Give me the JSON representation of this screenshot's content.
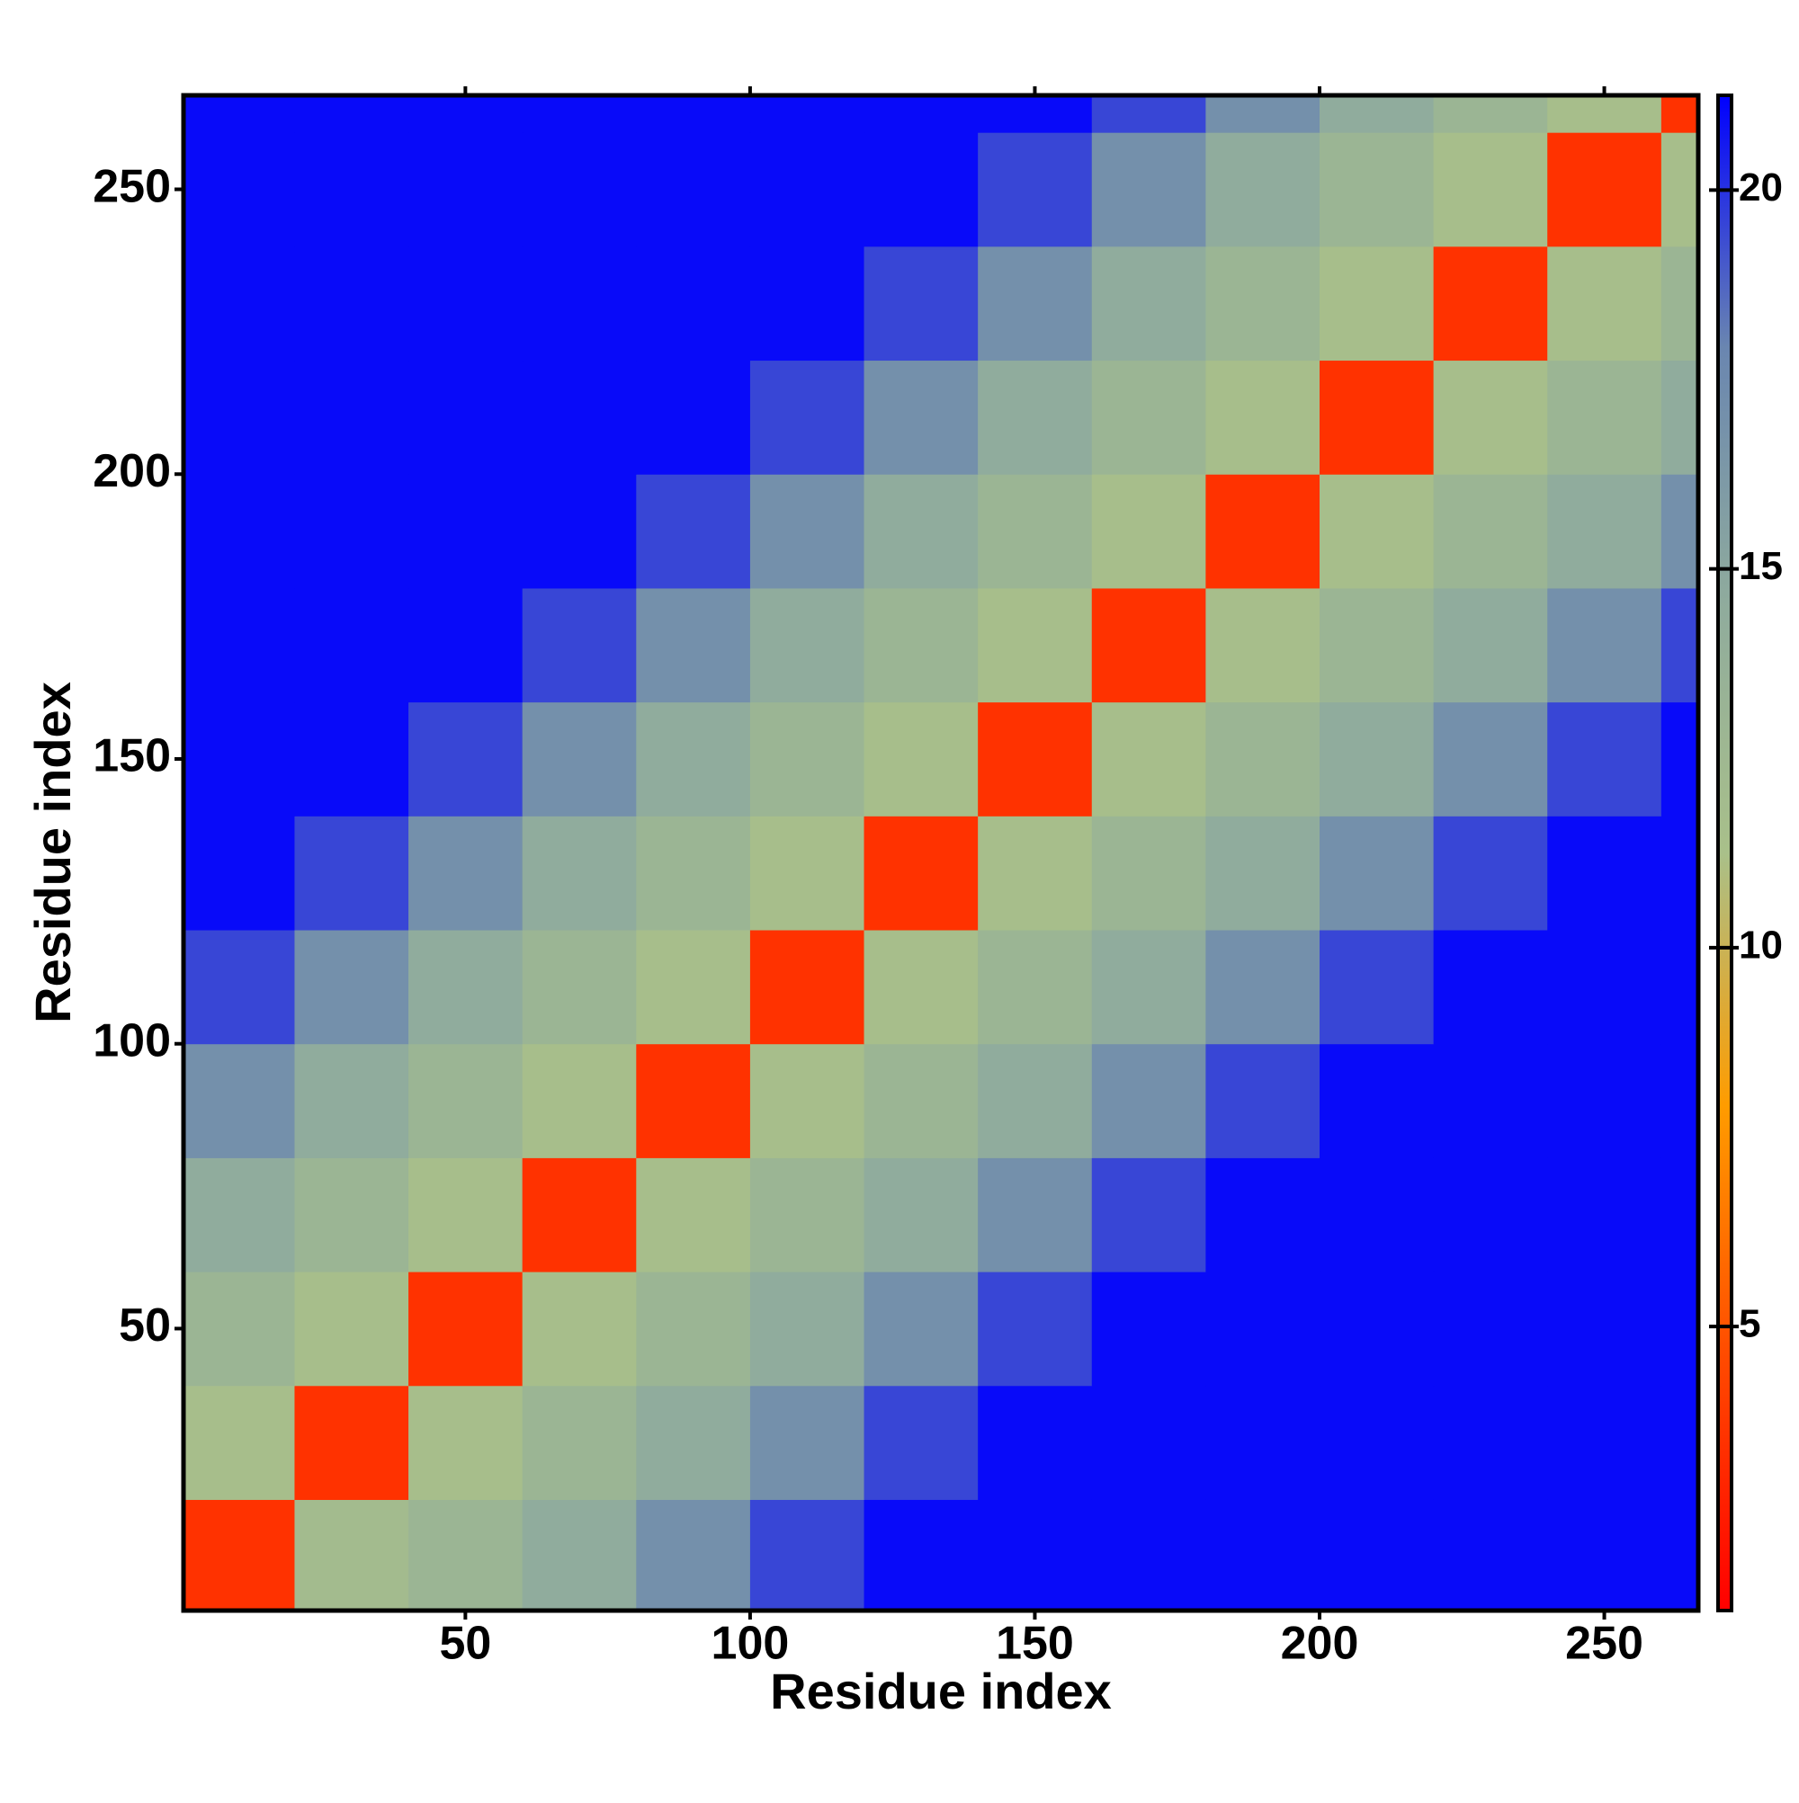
{
  "chart_data": {
    "type": "heatmap",
    "xlabel": "Residue index",
    "ylabel": "Residue index",
    "xbins": [
      0.5,
      20,
      40,
      60,
      80,
      100,
      120,
      140,
      160,
      180,
      200,
      220,
      240,
      260,
      266.5
    ],
    "ybins": [
      0.5,
      20,
      40,
      60,
      80,
      100,
      120,
      140,
      160,
      180,
      200,
      220,
      240,
      260,
      266.5
    ],
    "values": [
      [
        3.5,
        12,
        13,
        14.5,
        17,
        19.5,
        21,
        21,
        21,
        21,
        21,
        21,
        21,
        21
      ],
      [
        11.5,
        3.5,
        11.5,
        13,
        14.5,
        17,
        19.5,
        21,
        21,
        21,
        21,
        21,
        21,
        21
      ],
      [
        13,
        11.5,
        3.5,
        11.5,
        13,
        14.5,
        17,
        19.5,
        21,
        21,
        21,
        21,
        21,
        21
      ],
      [
        14.5,
        13,
        11.5,
        3.5,
        11.5,
        13,
        14.5,
        17,
        19.5,
        21,
        21,
        21,
        21,
        21
      ],
      [
        17,
        14.5,
        13,
        11.5,
        3.5,
        11.5,
        13,
        14.5,
        17,
        19.5,
        21,
        21,
        21,
        21
      ],
      [
        19.5,
        17,
        14.5,
        13,
        11.5,
        3.5,
        11.5,
        13,
        14.5,
        17,
        19.5,
        21,
        21,
        21
      ],
      [
        21,
        19.5,
        17,
        14.5,
        13,
        11.5,
        3.5,
        11.5,
        13,
        14.5,
        17,
        19.5,
        21,
        21
      ],
      [
        21,
        21,
        19.5,
        17,
        14.5,
        13,
        11.5,
        3.5,
        11.5,
        13,
        14.5,
        17,
        19.5,
        21
      ],
      [
        21,
        21,
        21,
        19.5,
        17,
        14.5,
        13,
        11.5,
        3.5,
        11.5,
        13,
        14.5,
        17,
        19.5
      ],
      [
        21,
        21,
        21,
        21,
        19.5,
        17,
        14.5,
        13,
        11.5,
        3.5,
        11.5,
        13,
        14.5,
        17
      ],
      [
        21,
        21,
        21,
        21,
        21,
        19.5,
        17,
        14.5,
        13,
        11.5,
        3.5,
        11.5,
        13,
        14.5
      ],
      [
        21,
        21,
        21,
        21,
        21,
        21,
        19.5,
        17,
        14.5,
        13,
        11.5,
        3.5,
        11.5,
        13
      ],
      [
        21,
        21,
        21,
        21,
        21,
        21,
        21,
        19.5,
        17,
        14.5,
        13,
        11.5,
        3.5,
        11.5
      ],
      [
        21,
        21,
        21,
        21,
        21,
        21,
        21,
        21,
        19.5,
        17,
        14.5,
        13,
        11.5,
        3.5
      ]
    ],
    "xlim": [
      0.5,
      266.5
    ],
    "ylim": [
      0.5,
      266.5
    ],
    "xticks": [
      50,
      100,
      150,
      200,
      250
    ],
    "yticks": [
      50,
      100,
      150,
      200,
      250
    ],
    "zlim": [
      1.25,
      21.25
    ],
    "zticks": [
      5,
      10,
      15,
      20
    ],
    "colorscale": [
      "#ff0000",
      "#ff4a00",
      "#ff9c00",
      "#a9c08a",
      "#8fab9d",
      "#6a86b0",
      "#0000ff"
    ]
  }
}
